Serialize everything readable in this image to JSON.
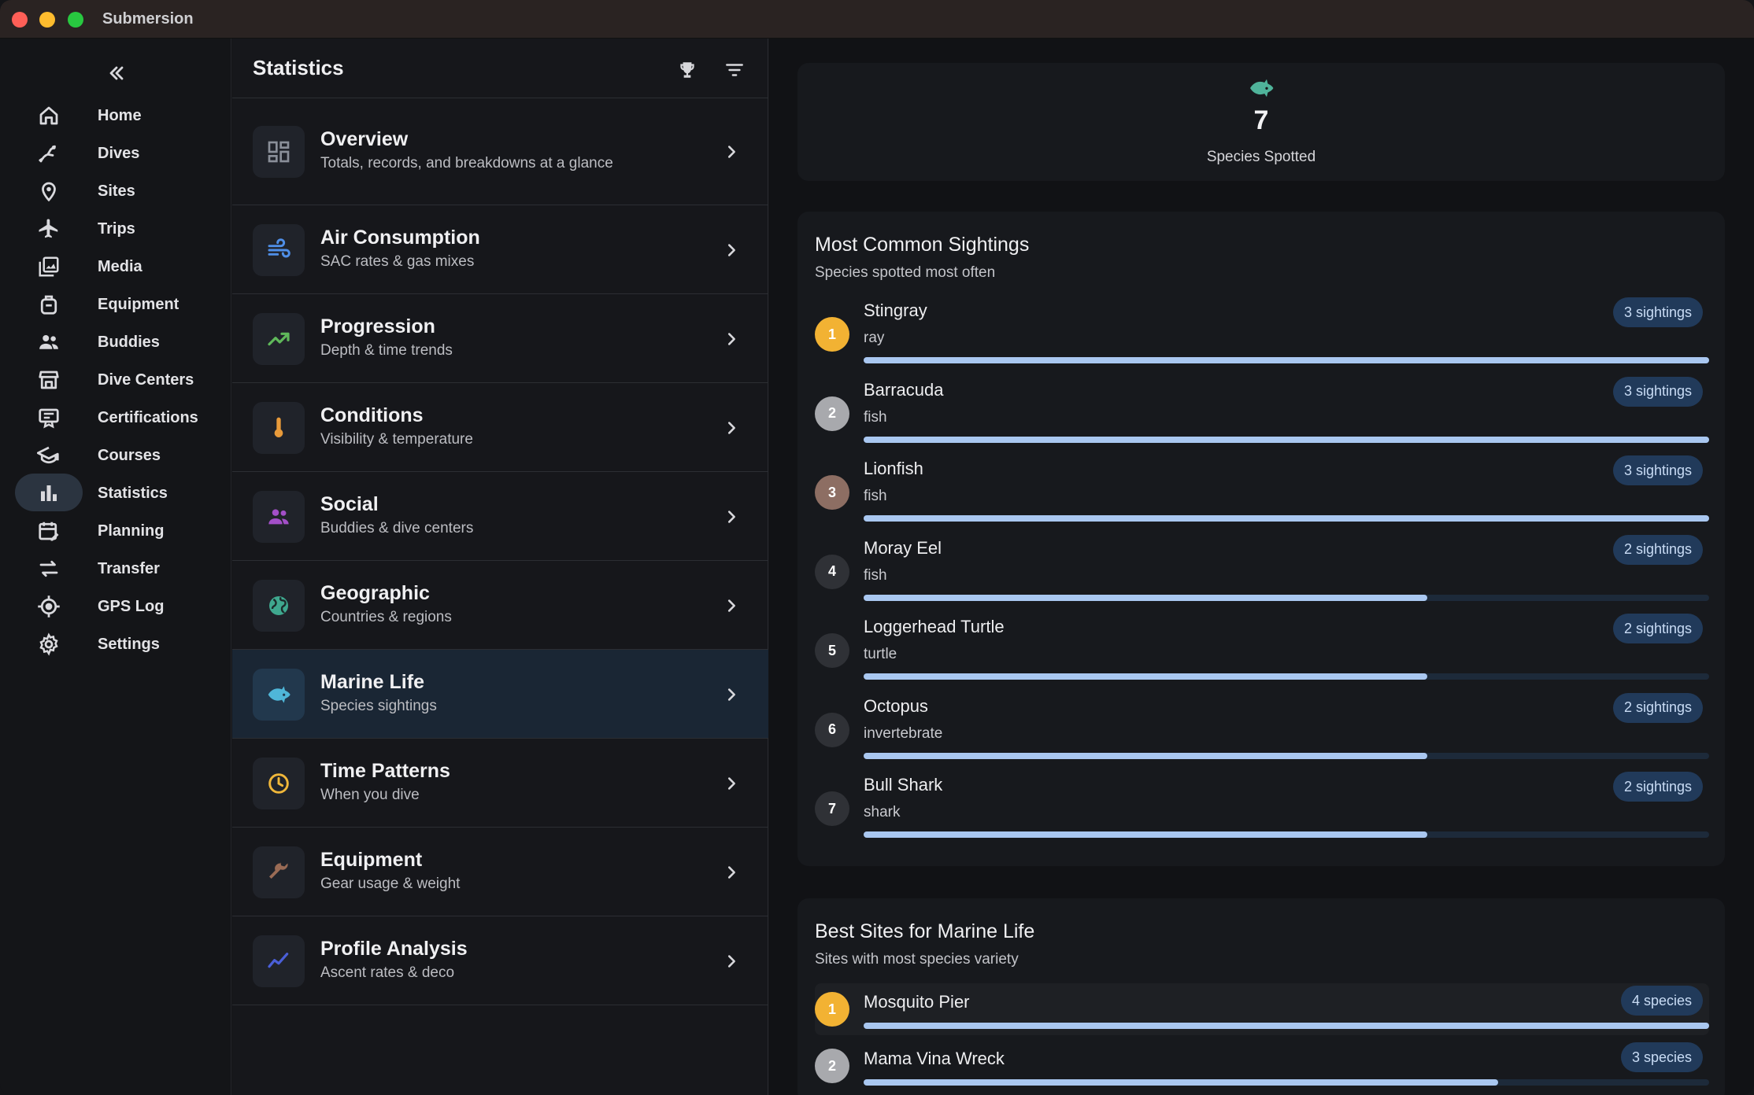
{
  "app": {
    "title": "Submersion"
  },
  "rail": {
    "items": [
      {
        "label": "Home",
        "icon": "home-icon"
      },
      {
        "label": "Dives",
        "icon": "diver-icon"
      },
      {
        "label": "Sites",
        "icon": "location-pin-icon"
      },
      {
        "label": "Trips",
        "icon": "airplane-icon"
      },
      {
        "label": "Media",
        "icon": "photo-library-icon"
      },
      {
        "label": "Equipment",
        "icon": "backpack-icon"
      },
      {
        "label": "Buddies",
        "icon": "people-icon"
      },
      {
        "label": "Dive Centers",
        "icon": "store-icon"
      },
      {
        "label": "Certifications",
        "icon": "card-icon"
      },
      {
        "label": "Courses",
        "icon": "school-icon"
      },
      {
        "label": "Statistics",
        "icon": "bar-chart-icon",
        "active": true
      },
      {
        "label": "Planning",
        "icon": "calendar-edit-icon"
      },
      {
        "label": "Transfer",
        "icon": "swap-icon"
      },
      {
        "label": "GPS Log",
        "icon": "gps-icon"
      },
      {
        "label": "Settings",
        "icon": "gear-icon"
      }
    ]
  },
  "statistics": {
    "title": "Statistics",
    "categories": [
      {
        "title": "Overview",
        "subtitle": "Totals, records, and breakdowns at a glance",
        "icon": "dashboard-icon",
        "color": "#8a8f99"
      },
      {
        "title": "Air Consumption",
        "subtitle": "SAC rates & gas mixes",
        "icon": "air-icon",
        "color": "#4f8fe8"
      },
      {
        "title": "Progression",
        "subtitle": "Depth & time trends",
        "icon": "trending-up-icon",
        "color": "#5fb85a"
      },
      {
        "title": "Conditions",
        "subtitle": "Visibility & temperature",
        "icon": "thermometer-icon",
        "color": "#e89a3a"
      },
      {
        "title": "Social",
        "subtitle": "Buddies & dive centers",
        "icon": "people-icon",
        "color": "#a34fc8"
      },
      {
        "title": "Geographic",
        "subtitle": "Countries & regions",
        "icon": "globe-icon",
        "color": "#3fa88f"
      },
      {
        "title": "Marine Life",
        "subtitle": "Species sightings",
        "icon": "fish-icon",
        "color": "#4fb6d8",
        "active": true
      },
      {
        "title": "Time Patterns",
        "subtitle": "When you dive",
        "icon": "clock-icon",
        "color": "#f0b73a"
      },
      {
        "title": "Equipment",
        "subtitle": "Gear usage & weight",
        "icon": "wrench-icon",
        "color": "#9a6b55"
      },
      {
        "title": "Profile Analysis",
        "subtitle": "Ascent rates & deco",
        "icon": "show-chart-icon",
        "color": "#4a5fd8"
      }
    ]
  },
  "marine": {
    "species_count": "7",
    "species_label": "Species Spotted",
    "common": {
      "title": "Most Common Sightings",
      "subtitle": "Species spotted most often",
      "items": [
        {
          "rank": "1",
          "name": "Stingray",
          "type": "ray",
          "badge": "3 sightings",
          "value": 3,
          "rank_color": "#f2b233"
        },
        {
          "rank": "2",
          "name": "Barracuda",
          "type": "fish",
          "badge": "3 sightings",
          "value": 3,
          "rank_color": "#a8a9ad"
        },
        {
          "rank": "3",
          "name": "Lionfish",
          "type": "fish",
          "badge": "3 sightings",
          "value": 3,
          "rank_color": "#8d6e63"
        },
        {
          "rank": "4",
          "name": "Moray Eel",
          "type": "fish",
          "badge": "2 sightings",
          "value": 2,
          "rank_color": "#2f3136"
        },
        {
          "rank": "5",
          "name": "Loggerhead Turtle",
          "type": "turtle",
          "badge": "2 sightings",
          "value": 2,
          "rank_color": "#2f3136"
        },
        {
          "rank": "6",
          "name": "Octopus",
          "type": "invertebrate",
          "badge": "2 sightings",
          "value": 2,
          "rank_color": "#2f3136"
        },
        {
          "rank": "7",
          "name": "Bull Shark",
          "type": "shark",
          "badge": "2 sightings",
          "value": 2,
          "rank_color": "#2f3136"
        }
      ],
      "max": 3
    },
    "sites": {
      "title": "Best Sites for Marine Life",
      "subtitle": "Sites with most species variety",
      "items": [
        {
          "rank": "1",
          "name": "Mosquito Pier",
          "badge": "4 species",
          "value": 4,
          "rank_color": "#f2b233"
        },
        {
          "rank": "2",
          "name": "Mama Vina Wreck",
          "badge": "3 species",
          "value": 3,
          "rank_color": "#a8a9ad"
        }
      ],
      "max": 4
    }
  }
}
